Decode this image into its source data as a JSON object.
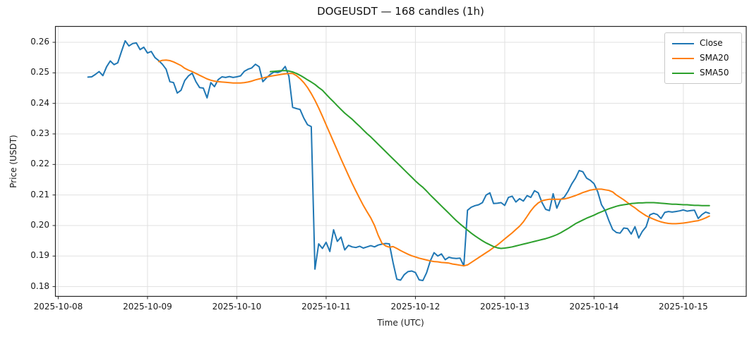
{
  "chart_data": {
    "type": "line",
    "title": "DOGEUSDT — 168 candles (1h)",
    "xlabel": "Time (UTC)",
    "ylabel": "Price (USDT)",
    "grid": true,
    "legend": {
      "position": "upper right",
      "entries": [
        "Close",
        "SMA20",
        "SMA50"
      ]
    },
    "x_axis": {
      "tick_labels": [
        "2025-10-08",
        "2025-10-09",
        "2025-10-10",
        "2025-10-11",
        "2025-10-12",
        "2025-10-13",
        "2025-10-14",
        "2025-10-15"
      ],
      "tick_hours": [
        0,
        24,
        48,
        72,
        96,
        120,
        144,
        168
      ],
      "range_hours": [
        -0.75,
        184.9
      ],
      "first_candle_hour": 8,
      "interval_hours": 1,
      "candle_count": 168
    },
    "y_axis": {
      "ticks": [
        0.18,
        0.19,
        0.2,
        0.21,
        0.22,
        0.23,
        0.24,
        0.25,
        0.26
      ],
      "range": [
        0.1768,
        0.2652
      ],
      "tick_format_decimals": 2
    },
    "style": {
      "grid_color": "#e0e0e0",
      "axis_color": "#262626",
      "background": "#ffffff"
    },
    "series": [
      {
        "name": "Close",
        "color": "#1f77b4",
        "start_index": 0,
        "values": [
          0.2486,
          0.2487,
          0.2495,
          0.2504,
          0.2491,
          0.252,
          0.2539,
          0.2527,
          0.2533,
          0.257,
          0.2605,
          0.2588,
          0.2596,
          0.2598,
          0.2576,
          0.2584,
          0.2565,
          0.257,
          0.255,
          0.254,
          0.2528,
          0.2512,
          0.2471,
          0.2468,
          0.2434,
          0.2443,
          0.2475,
          0.249,
          0.2499,
          0.2471,
          0.2452,
          0.245,
          0.2418,
          0.2468,
          0.2455,
          0.2478,
          0.2487,
          0.2485,
          0.2488,
          0.2485,
          0.2487,
          0.249,
          0.2505,
          0.2512,
          0.2516,
          0.2528,
          0.252,
          0.2471,
          0.2484,
          0.2495,
          0.2503,
          0.2501,
          0.2506,
          0.2521,
          0.2489,
          0.2387,
          0.2383,
          0.238,
          0.2352,
          0.233,
          0.2324,
          0.1857,
          0.194,
          0.1925,
          0.1945,
          0.1915,
          0.1986,
          0.1948,
          0.1962,
          0.192,
          0.1935,
          0.193,
          0.1928,
          0.1932,
          0.1926,
          0.193,
          0.1934,
          0.193,
          0.1936,
          0.1939,
          0.1941,
          0.194,
          0.1878,
          0.1824,
          0.1821,
          0.1839,
          0.1849,
          0.1851,
          0.1846,
          0.1822,
          0.182,
          0.1845,
          0.1884,
          0.1911,
          0.19,
          0.1907,
          0.1888,
          0.1896,
          0.1893,
          0.1892,
          0.1893,
          0.1868,
          0.205,
          0.206,
          0.2065,
          0.2068,
          0.2075,
          0.21,
          0.2107,
          0.2072,
          0.2073,
          0.2075,
          0.2066,
          0.2092,
          0.2096,
          0.2077,
          0.2088,
          0.208,
          0.2098,
          0.2092,
          0.2114,
          0.2107,
          0.2076,
          0.2053,
          0.2049,
          0.2104,
          0.2057,
          0.2085,
          0.2093,
          0.2112,
          0.2136,
          0.2155,
          0.218,
          0.2176,
          0.2155,
          0.2148,
          0.2137,
          0.211,
          0.2068,
          0.2049,
          0.2016,
          0.1987,
          0.1977,
          0.1975,
          0.1992,
          0.199,
          0.1972,
          0.1996,
          0.1959,
          0.1981,
          0.1996,
          0.2035,
          0.204,
          0.2036,
          0.2023,
          0.2043,
          0.2046,
          0.2044,
          0.2046,
          0.2048,
          0.2051,
          0.2047,
          0.2049,
          0.205,
          0.2023,
          0.2036,
          0.2044,
          0.204
        ]
      },
      {
        "name": "SMA20",
        "color": "#ff7f0e",
        "start_index": 19,
        "values": [
          0.2537,
          0.2541,
          0.2542,
          0.254,
          0.2536,
          0.253,
          0.2524,
          0.2515,
          0.2509,
          0.2504,
          0.2498,
          0.2492,
          0.2486,
          0.248,
          0.2476,
          0.2473,
          0.2471,
          0.247,
          0.2469,
          0.2468,
          0.2467,
          0.2467,
          0.2467,
          0.2468,
          0.247,
          0.2473,
          0.2477,
          0.248,
          0.2483,
          0.2486,
          0.2489,
          0.2491,
          0.2493,
          0.2495,
          0.2497,
          0.2498,
          0.2498,
          0.2491,
          0.2481,
          0.2468,
          0.2452,
          0.2432,
          0.241,
          0.2385,
          0.2358,
          0.233,
          0.2302,
          0.2274,
          0.2246,
          0.2218,
          0.2191,
          0.2164,
          0.2138,
          0.2113,
          0.2089,
          0.2066,
          0.2045,
          0.2025,
          0.2,
          0.1968,
          0.1942,
          0.1933,
          0.1929,
          0.1931,
          0.1925,
          0.1918,
          0.1912,
          0.1906,
          0.1901,
          0.1897,
          0.1893,
          0.189,
          0.1887,
          0.1884,
          0.1882,
          0.1881,
          0.1879,
          0.1878,
          0.1877,
          0.1874,
          0.1872,
          0.187,
          0.1868,
          0.1871,
          0.1879,
          0.1887,
          0.1895,
          0.1903,
          0.1911,
          0.1919,
          0.1928,
          0.1936,
          0.1946,
          0.1956,
          0.1966,
          0.1976,
          0.1987,
          0.1998,
          0.2012,
          0.203,
          0.2048,
          0.2063,
          0.2074,
          0.2081,
          0.2084,
          0.2086,
          0.2086,
          0.2086,
          0.2086,
          0.2087,
          0.209,
          0.2094,
          0.2098,
          0.2103,
          0.2108,
          0.2112,
          0.2116,
          0.2118,
          0.2119,
          0.2119,
          0.2117,
          0.2115,
          0.211,
          0.21,
          0.2092,
          0.2084,
          0.2075,
          0.2066,
          0.2058,
          0.2048,
          0.204,
          0.2032,
          0.2026,
          0.2021,
          0.2016,
          0.2012,
          0.2009,
          0.2007,
          0.2006,
          0.2006,
          0.2007,
          0.2008,
          0.201,
          0.2012,
          0.2014,
          0.2016,
          0.202,
          0.2025,
          0.2031
        ]
      },
      {
        "name": "SMA50",
        "color": "#2ca02c",
        "start_index": 49,
        "values": [
          0.2504,
          0.2505,
          0.2506,
          0.2507,
          0.2507,
          0.2506,
          0.2503,
          0.2498,
          0.2492,
          0.2485,
          0.2477,
          0.247,
          0.2462,
          0.2452,
          0.2443,
          0.243,
          0.2417,
          0.2405,
          0.2392,
          0.238,
          0.2368,
          0.2358,
          0.2348,
          0.2336,
          0.2325,
          0.2313,
          0.2301,
          0.229,
          0.2278,
          0.2266,
          0.2254,
          0.2242,
          0.223,
          0.2218,
          0.2206,
          0.2194,
          0.2182,
          0.217,
          0.2158,
          0.2146,
          0.2135,
          0.2125,
          0.2113,
          0.21,
          0.2088,
          0.2076,
          0.2064,
          0.2052,
          0.204,
          0.2028,
          0.2016,
          0.2005,
          0.1995,
          0.1985,
          0.1975,
          0.1966,
          0.1958,
          0.195,
          0.1943,
          0.1937,
          0.1931,
          0.1927,
          0.1925,
          0.1926,
          0.1928,
          0.193,
          0.1933,
          0.1936,
          0.1939,
          0.1942,
          0.1945,
          0.1948,
          0.1951,
          0.1954,
          0.1957,
          0.1961,
          0.1965,
          0.197,
          0.1976,
          0.1983,
          0.199,
          0.1998,
          0.2006,
          0.2012,
          0.2018,
          0.2024,
          0.2029,
          0.2034,
          0.204,
          0.2045,
          0.205,
          0.2055,
          0.2059,
          0.2063,
          0.2066,
          0.2068,
          0.207,
          0.2072,
          0.2073,
          0.2074,
          0.2074,
          0.2075,
          0.2075,
          0.2075,
          0.2074,
          0.2073,
          0.2072,
          0.2071,
          0.207,
          0.207,
          0.2069,
          0.2068,
          0.2068,
          0.2067,
          0.2066,
          0.2066,
          0.2065,
          0.2065,
          0.2065
        ]
      }
    ]
  }
}
